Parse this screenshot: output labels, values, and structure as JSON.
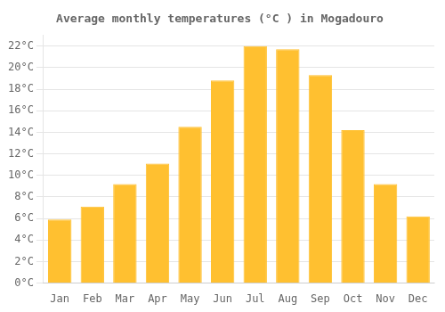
{
  "chart_data": {
    "type": "bar",
    "title": "Average monthly temperatures (°C ) in Mogadouro",
    "categories": [
      "Jan",
      "Feb",
      "Mar",
      "Apr",
      "May",
      "Jun",
      "Jul",
      "Aug",
      "Sep",
      "Oct",
      "Nov",
      "Dec"
    ],
    "values": [
      5.9,
      7.1,
      9.2,
      11.1,
      14.5,
      18.8,
      22.0,
      21.7,
      19.3,
      14.2,
      9.2,
      6.2
    ],
    "color": "#FFC030",
    "ylim": [
      0,
      23
    ],
    "yticks": [
      {
        "value": 0,
        "label": "0°C"
      },
      {
        "value": 2,
        "label": "2°C"
      },
      {
        "value": 4,
        "label": "4°C"
      },
      {
        "value": 6,
        "label": "6°C"
      },
      {
        "value": 8,
        "label": "8°C"
      },
      {
        "value": 10,
        "label": "10°C"
      },
      {
        "value": 12,
        "label": "12°C"
      },
      {
        "value": 14,
        "label": "14°C"
      },
      {
        "value": 16,
        "label": "16°C"
      },
      {
        "value": 18,
        "label": "18°C"
      },
      {
        "value": 20,
        "label": "20°C"
      },
      {
        "value": 22,
        "label": "22°C"
      }
    ],
    "grid": true
  }
}
